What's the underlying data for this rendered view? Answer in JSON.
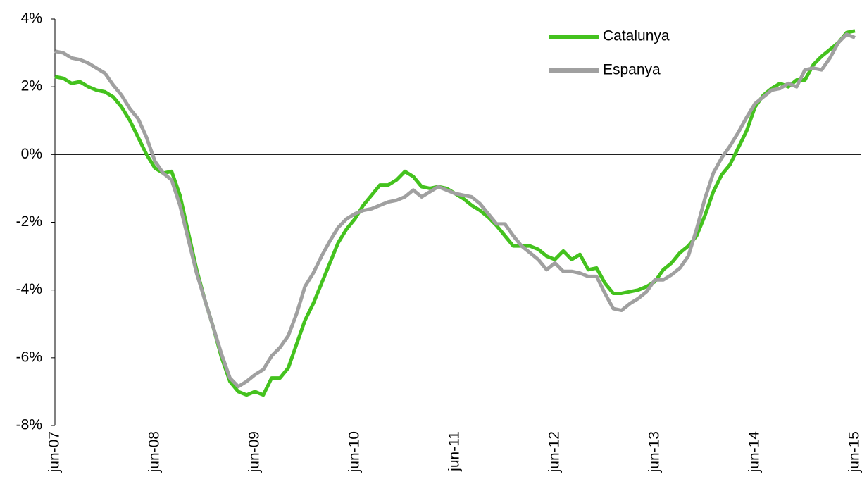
{
  "chart_data": {
    "type": "line",
    "categories": [
      "jun-07",
      null,
      null,
      null,
      null,
      null,
      null,
      null,
      null,
      null,
      null,
      null,
      "jun-08",
      null,
      null,
      null,
      null,
      null,
      null,
      null,
      null,
      null,
      null,
      null,
      "jun-09",
      null,
      null,
      null,
      null,
      null,
      null,
      null,
      null,
      null,
      null,
      null,
      "jun-10",
      null,
      null,
      null,
      null,
      null,
      null,
      null,
      null,
      null,
      null,
      null,
      "jun-11",
      null,
      null,
      null,
      null,
      null,
      null,
      null,
      null,
      null,
      null,
      null,
      "jun-12",
      null,
      null,
      null,
      null,
      null,
      null,
      null,
      null,
      null,
      null,
      null,
      "jun-13",
      null,
      null,
      null,
      null,
      null,
      null,
      null,
      null,
      null,
      null,
      null,
      "jun-14",
      null,
      null,
      null,
      null,
      null,
      null,
      null,
      null,
      null,
      null,
      null,
      "jun-15"
    ],
    "series": [
      {
        "name": "Catalunya",
        "color": "#44c21e",
        "values": [
          2.3,
          2.25,
          2.1,
          2.15,
          2.0,
          1.9,
          1.85,
          1.7,
          1.4,
          1.0,
          0.5,
          0.0,
          -0.4,
          -0.55,
          -0.5,
          -1.2,
          -2.3,
          -3.4,
          -4.3,
          -5.1,
          -6.0,
          -6.7,
          -7.0,
          -7.1,
          -7.0,
          -7.1,
          -6.6,
          -6.6,
          -6.3,
          -5.6,
          -4.9,
          -4.4,
          -3.8,
          -3.2,
          -2.6,
          -2.2,
          -1.9,
          -1.5,
          -1.2,
          -0.9,
          -0.9,
          -0.75,
          -0.5,
          -0.65,
          -0.95,
          -1.0,
          -0.95,
          -1.0,
          -1.15,
          -1.3,
          -1.5,
          -1.65,
          -1.85,
          -2.1,
          -2.4,
          -2.7,
          -2.7,
          -2.7,
          -2.8,
          -3.0,
          -3.1,
          -2.85,
          -3.1,
          -2.95,
          -3.4,
          -3.35,
          -3.8,
          -4.1,
          -4.1,
          -4.05,
          -4.0,
          -3.9,
          -3.75,
          -3.4,
          -3.2,
          -2.9,
          -2.7,
          -2.4,
          -1.8,
          -1.1,
          -0.6,
          -0.3,
          0.2,
          0.7,
          1.4,
          1.75,
          1.95,
          2.1,
          2.0,
          2.2,
          2.2,
          2.65,
          2.9,
          3.1,
          3.3,
          3.6,
          3.65
        ]
      },
      {
        "name": "Espanya",
        "color": "#a0a0a0",
        "values": [
          3.05,
          3.0,
          2.85,
          2.8,
          2.7,
          2.55,
          2.4,
          2.05,
          1.75,
          1.35,
          1.05,
          0.5,
          -0.2,
          -0.55,
          -0.75,
          -1.5,
          -2.5,
          -3.5,
          -4.3,
          -5.1,
          -5.9,
          -6.6,
          -6.85,
          -6.7,
          -6.5,
          -6.35,
          -5.95,
          -5.7,
          -5.35,
          -4.7,
          -3.9,
          -3.5,
          -3.0,
          -2.55,
          -2.15,
          -1.9,
          -1.75,
          -1.65,
          -1.6,
          -1.5,
          -1.4,
          -1.35,
          -1.25,
          -1.05,
          -1.25,
          -1.1,
          -0.95,
          -1.05,
          -1.15,
          -1.2,
          -1.25,
          -1.45,
          -1.75,
          -2.05,
          -2.05,
          -2.4,
          -2.7,
          -2.9,
          -3.1,
          -3.4,
          -3.2,
          -3.45,
          -3.45,
          -3.5,
          -3.6,
          -3.6,
          -4.1,
          -4.55,
          -4.6,
          -4.4,
          -4.25,
          -4.05,
          -3.7,
          -3.7,
          -3.55,
          -3.35,
          -3.0,
          -2.2,
          -1.3,
          -0.55,
          -0.1,
          0.25,
          0.65,
          1.1,
          1.5,
          1.7,
          1.9,
          1.95,
          2.1,
          2.0,
          2.5,
          2.55,
          2.5,
          2.85,
          3.3,
          3.55,
          3.45
        ]
      }
    ],
    "ylim": [
      -8,
      4
    ],
    "yticks": [
      {
        "value": -8,
        "label": "-8%"
      },
      {
        "value": -6,
        "label": "-6%"
      },
      {
        "value": -4,
        "label": "-4%"
      },
      {
        "value": -2,
        "label": "-2%"
      },
      {
        "value": 0,
        "label": "0%"
      },
      {
        "value": 2,
        "label": "2%"
      },
      {
        "value": 4,
        "label": "4%"
      }
    ],
    "grid": false,
    "legend": "top-right"
  }
}
